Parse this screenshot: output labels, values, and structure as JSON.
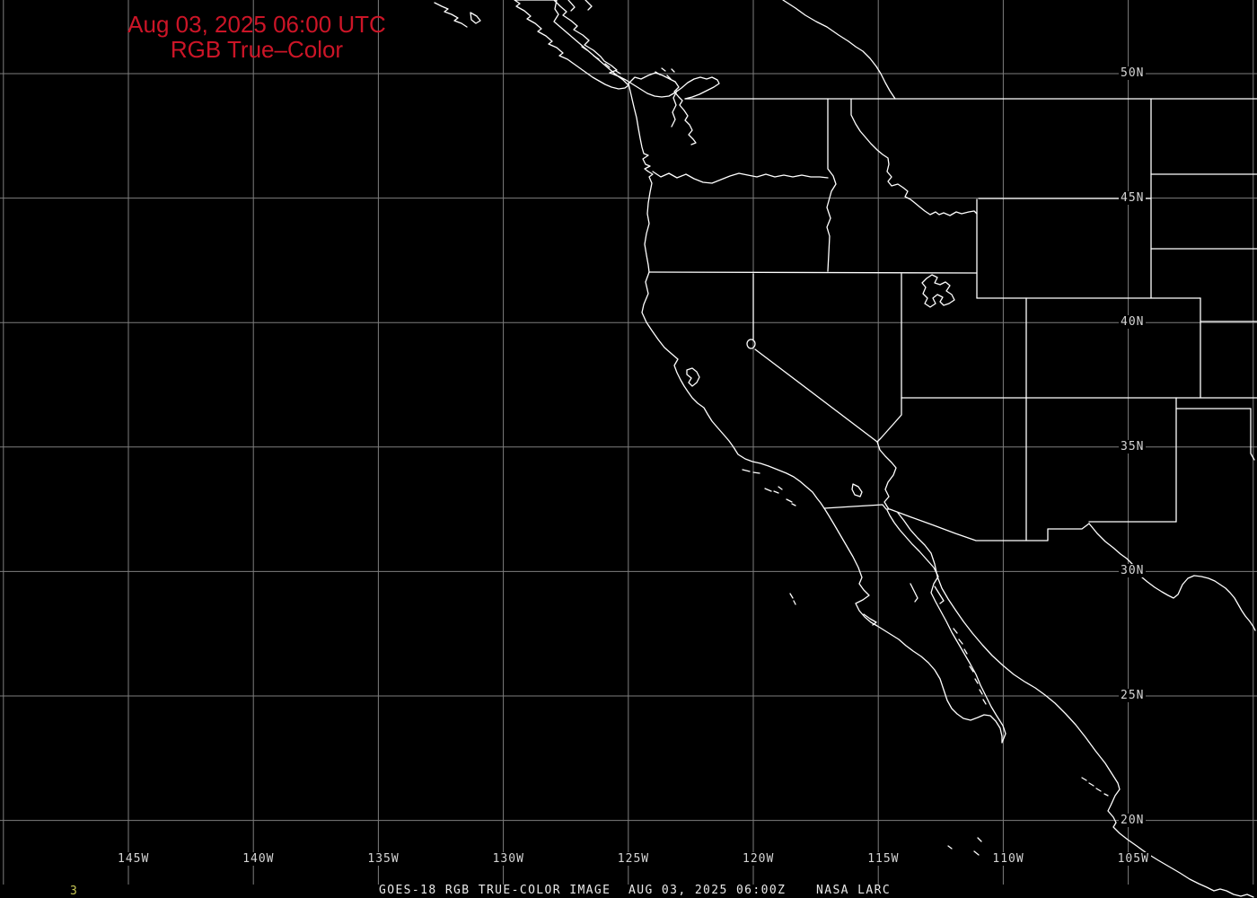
{
  "title": {
    "line1": "Aug 03, 2025 06:00 UTC",
    "line2": "RGB True–Color"
  },
  "footer": {
    "product": "GOES-18 RGB TRUE-COLOR IMAGE",
    "datetime": "AUG 03, 2025 06:00Z",
    "credit": "NASA LARC"
  },
  "corner_mark": "3",
  "colors": {
    "background": "#000000",
    "title_red": "#cc1527",
    "grid_gray": "#7e7e7e",
    "map_white": "#ffffff",
    "tick_label": "#d6d6d6",
    "footer_text": "#e9e9e9",
    "corner_mark_yellow": "#c8c855"
  },
  "graticule": {
    "lat_ticks": [
      {
        "deg": 50,
        "label": "50N"
      },
      {
        "deg": 45,
        "label": "45N"
      },
      {
        "deg": 40,
        "label": "40N"
      },
      {
        "deg": 35,
        "label": "35N"
      },
      {
        "deg": 30,
        "label": "30N"
      },
      {
        "deg": 25,
        "label": "25N"
      },
      {
        "deg": 20,
        "label": "20N"
      }
    ],
    "lon_ticks": [
      {
        "deg": 150,
        "label": ""
      },
      {
        "deg": 145,
        "label": "145W"
      },
      {
        "deg": 140,
        "label": "140W"
      },
      {
        "deg": 135,
        "label": "135W"
      },
      {
        "deg": 130,
        "label": "130W"
      },
      {
        "deg": 125,
        "label": "125W"
      },
      {
        "deg": 120,
        "label": "120W"
      },
      {
        "deg": 115,
        "label": "115W"
      },
      {
        "deg": 110,
        "label": "110W"
      },
      {
        "deg": 105,
        "label": "105W"
      },
      {
        "deg": 100,
        "label": ""
      }
    ]
  }
}
